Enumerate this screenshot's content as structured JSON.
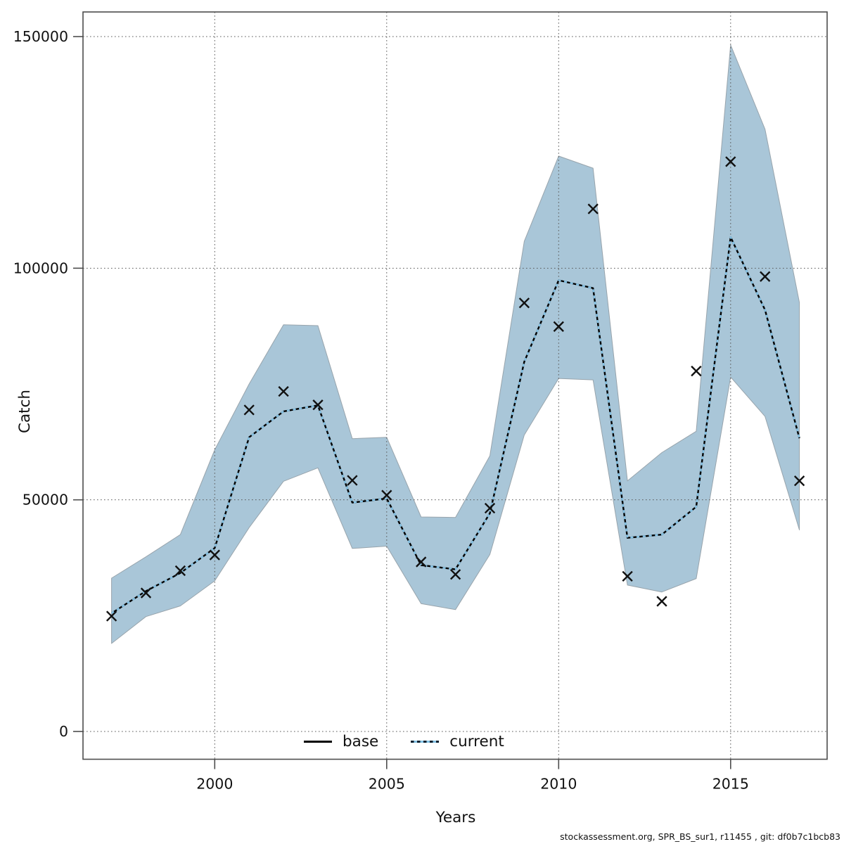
{
  "figure": {
    "background": "#ffffff"
  },
  "legend": {
    "items": [
      {
        "label": "base",
        "style": "solid-black-line"
      },
      {
        "label": "current",
        "style": "dotted-lightblue-line"
      }
    ]
  },
  "footer": "stockassessment.org, SPR_BS_sur1, r11455 , git: df0b7c1bcb83",
  "colors": {
    "ribbon_fill": "#a9c6d8",
    "ribbon_edge": "#98a4ac",
    "base_line": "#000000",
    "current_line": "#85c3e6",
    "marker": "#111111",
    "grid": "#5a5a5a",
    "frame": "#4d4d4d",
    "text": "#111111"
  },
  "chart_data": {
    "type": "line",
    "title": "",
    "xlabel": "Years",
    "ylabel": "Catch",
    "grid": "dotted",
    "legend_position": "bottom-center-inside",
    "xlim": [
      1996.2,
      2017.8
    ],
    "ylim": [
      -6000,
      155500
    ],
    "x_ticks": [
      2000,
      2005,
      2010,
      2015
    ],
    "y_ticks": [
      0,
      50000,
      100000,
      150000
    ],
    "x": [
      1997,
      1998,
      1999,
      2000,
      2001,
      2002,
      2003,
      2004,
      2005,
      2006,
      2007,
      2008,
      2009,
      2010,
      2011,
      2012,
      2013,
      2014,
      2015,
      2016,
      2017
    ],
    "series": [
      {
        "name": "base",
        "style": "solid",
        "color": "#000000",
        "values": [
          25500,
          30300,
          34200,
          39600,
          63500,
          69100,
          70400,
          49400,
          50300,
          35900,
          35000,
          47100,
          79800,
          97400,
          95700,
          41800,
          42500,
          48500,
          106700,
          91000,
          63300
        ]
      },
      {
        "name": "current",
        "style": "dotted",
        "color": "#85c3e6",
        "values": [
          25500,
          30300,
          34200,
          39600,
          63500,
          69100,
          70400,
          49400,
          50300,
          35900,
          35000,
          47100,
          79800,
          97400,
          95700,
          41800,
          42500,
          48500,
          106700,
          91000,
          63300
        ]
      },
      {
        "name": "observations",
        "style": "x-marker",
        "color": "#111111",
        "values": [
          24900,
          29900,
          34700,
          38100,
          69400,
          73400,
          70500,
          54200,
          51000,
          36600,
          33900,
          48200,
          92500,
          87400,
          112800,
          33500,
          28100,
          77800,
          123000,
          98200,
          54100
        ]
      }
    ],
    "band": {
      "name": "confidence-interval",
      "lower": [
        19000,
        24800,
        27100,
        32500,
        44000,
        54000,
        56900,
        39500,
        40000,
        27600,
        26300,
        38200,
        64000,
        76200,
        75900,
        31600,
        30100,
        33000,
        76500,
        68000,
        43500
      ],
      "upper": [
        33100,
        37700,
        42500,
        60800,
        75000,
        87800,
        87600,
        63200,
        63500,
        46300,
        46200,
        59500,
        105800,
        124200,
        121600,
        54100,
        60200,
        64800,
        148200,
        130000,
        92600
      ]
    }
  }
}
